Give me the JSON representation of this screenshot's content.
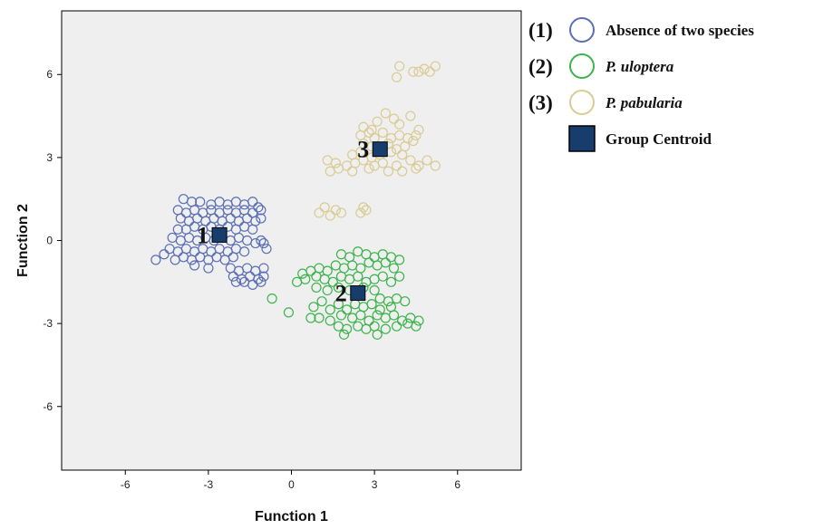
{
  "chart_data": {
    "type": "scatter",
    "xlabel": "Function 1",
    "ylabel": "Function 2",
    "xlim": [
      -8.3,
      8.3
    ],
    "ylim": [
      -8.3,
      8.3
    ],
    "xticks": [
      -6,
      -3,
      0,
      3,
      6
    ],
    "yticks": [
      -6,
      -3,
      0,
      3,
      6
    ],
    "tick_labels": {
      "x": [
        "-6",
        "-3",
        "0",
        "3",
        "6"
      ],
      "y": [
        "-6",
        "-3",
        "0",
        "3",
        "6"
      ]
    },
    "plot_background": "#efefef",
    "legend_position": "top-right",
    "legend": [
      {
        "number": "(1)",
        "label": "Absence of two species",
        "color": "#5b6fb5",
        "marker": "open-circle",
        "italic": false
      },
      {
        "number": "(2)",
        "label": "P. uloptera",
        "color": "#3cb44b",
        "marker": "open-circle",
        "italic": true
      },
      {
        "number": "(3)",
        "label": "P. pabularia",
        "color": "#d9cb94",
        "marker": "open-circle",
        "italic": true
      },
      {
        "number": "",
        "label": "Group Centroid",
        "color": "#173d6d",
        "marker": "filled-square",
        "italic": false
      }
    ],
    "series": [
      {
        "group": "1",
        "color": "#5b6fb5",
        "points": [
          [
            -3.9,
            1.5
          ],
          [
            -3.6,
            1.4
          ],
          [
            -3.3,
            1.4
          ],
          [
            -2.9,
            1.3
          ],
          [
            -2.6,
            1.4
          ],
          [
            -2.3,
            1.3
          ],
          [
            -2.0,
            1.4
          ],
          [
            -1.7,
            1.3
          ],
          [
            -1.4,
            1.4
          ],
          [
            -1.2,
            1.2
          ],
          [
            -4.1,
            1.1
          ],
          [
            -3.8,
            1.0
          ],
          [
            -3.5,
            1.1
          ],
          [
            -3.2,
            1.0
          ],
          [
            -2.9,
            1.1
          ],
          [
            -2.6,
            1.0
          ],
          [
            -2.3,
            1.1
          ],
          [
            -2.0,
            1.0
          ],
          [
            -1.7,
            1.1
          ],
          [
            -1.4,
            1.0
          ],
          [
            -1.1,
            1.1
          ],
          [
            -4.0,
            0.8
          ],
          [
            -3.7,
            0.7
          ],
          [
            -3.4,
            0.8
          ],
          [
            -3.1,
            0.7
          ],
          [
            -2.8,
            0.8
          ],
          [
            -2.5,
            0.7
          ],
          [
            -2.2,
            0.8
          ],
          [
            -1.9,
            0.7
          ],
          [
            -1.6,
            0.8
          ],
          [
            -1.3,
            0.7
          ],
          [
            -1.1,
            0.8
          ],
          [
            -4.1,
            0.4
          ],
          [
            -3.8,
            0.4
          ],
          [
            -3.5,
            0.5
          ],
          [
            -3.2,
            0.4
          ],
          [
            -2.9,
            0.5
          ],
          [
            -2.6,
            0.4
          ],
          [
            -2.3,
            0.5
          ],
          [
            -2.0,
            0.4
          ],
          [
            -1.7,
            0.5
          ],
          [
            -1.4,
            0.4
          ],
          [
            -4.3,
            0.1
          ],
          [
            -4.0,
            0.0
          ],
          [
            -3.7,
            0.1
          ],
          [
            -3.4,
            0.0
          ],
          [
            -3.1,
            0.1
          ],
          [
            -2.8,
            0.0
          ],
          [
            -2.5,
            0.1
          ],
          [
            -2.2,
            0.0
          ],
          [
            -1.9,
            0.1
          ],
          [
            -1.6,
            0.0
          ],
          [
            -1.3,
            -0.1
          ],
          [
            -1.1,
            0.0
          ],
          [
            -4.4,
            -0.3
          ],
          [
            -4.1,
            -0.4
          ],
          [
            -3.8,
            -0.3
          ],
          [
            -3.5,
            -0.4
          ],
          [
            -3.2,
            -0.3
          ],
          [
            -2.9,
            -0.4
          ],
          [
            -2.6,
            -0.3
          ],
          [
            -2.3,
            -0.4
          ],
          [
            -2.0,
            -0.3
          ],
          [
            -1.7,
            -0.4
          ],
          [
            -4.2,
            -0.7
          ],
          [
            -3.9,
            -0.6
          ],
          [
            -3.6,
            -0.7
          ],
          [
            -3.3,
            -0.6
          ],
          [
            -3.0,
            -0.7
          ],
          [
            -2.7,
            -0.6
          ],
          [
            -2.4,
            -0.7
          ],
          [
            -2.1,
            -0.6
          ],
          [
            -4.9,
            -0.7
          ],
          [
            -4.6,
            -0.5
          ],
          [
            -3.5,
            -0.9
          ],
          [
            -3.0,
            -1.0
          ],
          [
            -0.9,
            -0.3
          ],
          [
            -1.0,
            -0.1
          ],
          [
            -2.2,
            -1.0
          ],
          [
            -1.9,
            -1.1
          ],
          [
            -1.6,
            -1.0
          ],
          [
            -1.3,
            -1.1
          ],
          [
            -1.0,
            -1.0
          ],
          [
            -2.1,
            -1.3
          ],
          [
            -1.8,
            -1.4
          ],
          [
            -1.5,
            -1.3
          ],
          [
            -1.2,
            -1.4
          ],
          [
            -1.0,
            -1.3
          ],
          [
            -2.0,
            -1.5
          ],
          [
            -1.7,
            -1.5
          ],
          [
            -1.4,
            -1.6
          ],
          [
            -1.1,
            -1.5
          ]
        ]
      },
      {
        "group": "2",
        "color": "#3cb44b",
        "points": [
          [
            -0.7,
            -2.1
          ],
          [
            -0.1,
            -2.6
          ],
          [
            0.4,
            -1.2
          ],
          [
            0.7,
            -1.1
          ],
          [
            1.0,
            -1.0
          ],
          [
            1.3,
            -1.1
          ],
          [
            1.6,
            -0.9
          ],
          [
            1.9,
            -1.0
          ],
          [
            2.2,
            -0.9
          ],
          [
            2.5,
            -1.0
          ],
          [
            2.8,
            -0.8
          ],
          [
            3.1,
            -0.9
          ],
          [
            3.4,
            -0.8
          ],
          [
            3.7,
            -1.0
          ],
          [
            1.8,
            -0.5
          ],
          [
            2.1,
            -0.6
          ],
          [
            2.4,
            -0.4
          ],
          [
            2.7,
            -0.5
          ],
          [
            3.0,
            -0.6
          ],
          [
            3.3,
            -0.5
          ],
          [
            3.6,
            -0.6
          ],
          [
            3.9,
            -0.7
          ],
          [
            0.2,
            -1.5
          ],
          [
            0.5,
            -1.4
          ],
          [
            0.9,
            -1.3
          ],
          [
            1.2,
            -1.4
          ],
          [
            1.5,
            -1.5
          ],
          [
            1.8,
            -1.3
          ],
          [
            2.1,
            -1.4
          ],
          [
            2.4,
            -1.3
          ],
          [
            2.7,
            -1.5
          ],
          [
            3.0,
            -1.4
          ],
          [
            3.3,
            -1.3
          ],
          [
            3.6,
            -1.5
          ],
          [
            3.9,
            -1.3
          ],
          [
            0.9,
            -1.7
          ],
          [
            1.3,
            -1.8
          ],
          [
            1.7,
            -1.7
          ],
          [
            2.1,
            -1.8
          ],
          [
            2.6,
            -1.7
          ],
          [
            3.0,
            -1.8
          ],
          [
            3.2,
            -2.1
          ],
          [
            3.5,
            -2.2
          ],
          [
            3.8,
            -2.1
          ],
          [
            4.1,
            -2.2
          ],
          [
            0.8,
            -2.4
          ],
          [
            1.1,
            -2.2
          ],
          [
            1.4,
            -2.5
          ],
          [
            1.7,
            -2.3
          ],
          [
            2.0,
            -2.5
          ],
          [
            2.3,
            -2.3
          ],
          [
            2.6,
            -2.4
          ],
          [
            2.9,
            -2.3
          ],
          [
            3.2,
            -2.5
          ],
          [
            3.6,
            -2.4
          ],
          [
            1.0,
            -2.8
          ],
          [
            1.4,
            -2.9
          ],
          [
            1.8,
            -2.7
          ],
          [
            2.2,
            -2.8
          ],
          [
            2.5,
            -2.7
          ],
          [
            2.8,
            -2.9
          ],
          [
            3.1,
            -2.7
          ],
          [
            3.4,
            -2.8
          ],
          [
            3.7,
            -2.7
          ],
          [
            4.0,
            -2.9
          ],
          [
            4.3,
            -2.8
          ],
          [
            4.6,
            -2.9
          ],
          [
            1.7,
            -3.1
          ],
          [
            2.0,
            -3.2
          ],
          [
            2.4,
            -3.1
          ],
          [
            2.7,
            -3.2
          ],
          [
            3.0,
            -3.1
          ],
          [
            3.4,
            -3.2
          ],
          [
            3.8,
            -3.1
          ],
          [
            4.2,
            -3.0
          ],
          [
            4.5,
            -3.1
          ],
          [
            0.7,
            -2.8
          ],
          [
            1.9,
            -3.4
          ],
          [
            3.1,
            -3.4
          ]
        ]
      },
      {
        "group": "3",
        "color": "#d9cb94",
        "points": [
          [
            3.9,
            6.3
          ],
          [
            4.4,
            6.1
          ],
          [
            4.6,
            6.1
          ],
          [
            4.8,
            6.2
          ],
          [
            5.0,
            6.1
          ],
          [
            5.2,
            6.3
          ],
          [
            3.8,
            5.9
          ],
          [
            2.6,
            4.1
          ],
          [
            2.9,
            4.0
          ],
          [
            3.1,
            4.3
          ],
          [
            3.4,
            4.6
          ],
          [
            3.7,
            4.4
          ],
          [
            3.9,
            4.2
          ],
          [
            4.3,
            4.5
          ],
          [
            4.6,
            4.0
          ],
          [
            2.5,
            3.8
          ],
          [
            2.8,
            3.9
          ],
          [
            3.0,
            3.7
          ],
          [
            3.3,
            3.9
          ],
          [
            3.6,
            3.7
          ],
          [
            3.9,
            3.8
          ],
          [
            4.2,
            3.7
          ],
          [
            4.5,
            3.8
          ],
          [
            2.6,
            3.5
          ],
          [
            2.9,
            3.4
          ],
          [
            3.5,
            3.5
          ],
          [
            3.8,
            3.3
          ],
          [
            4.1,
            3.4
          ],
          [
            4.4,
            3.6
          ],
          [
            2.2,
            3.1
          ],
          [
            2.5,
            3.2
          ],
          [
            2.9,
            3.0
          ],
          [
            3.2,
            3.1
          ],
          [
            3.6,
            3.2
          ],
          [
            4.0,
            3.1
          ],
          [
            1.3,
            2.9
          ],
          [
            1.6,
            2.8
          ],
          [
            2.0,
            2.7
          ],
          [
            2.3,
            2.8
          ],
          [
            2.6,
            2.9
          ],
          [
            3.0,
            2.7
          ],
          [
            3.3,
            2.8
          ],
          [
            3.8,
            2.7
          ],
          [
            4.3,
            2.9
          ],
          [
            4.6,
            2.7
          ],
          [
            4.9,
            2.9
          ],
          [
            5.2,
            2.7
          ],
          [
            1.4,
            2.5
          ],
          [
            1.7,
            2.6
          ],
          [
            2.2,
            2.5
          ],
          [
            2.8,
            2.6
          ],
          [
            3.5,
            2.5
          ],
          [
            4.0,
            2.5
          ],
          [
            4.5,
            2.6
          ],
          [
            1.0,
            1.0
          ],
          [
            1.2,
            1.2
          ],
          [
            1.4,
            0.9
          ],
          [
            1.6,
            1.1
          ],
          [
            1.8,
            1.0
          ],
          [
            2.5,
            1.0
          ],
          [
            2.6,
            1.2
          ],
          [
            2.7,
            1.1
          ]
        ]
      }
    ],
    "centroids": [
      {
        "label": "1",
        "x": -2.6,
        "y": 0.2
      },
      {
        "label": "2",
        "x": 2.4,
        "y": -1.9
      },
      {
        "label": "3",
        "x": 3.2,
        "y": 3.3
      }
    ]
  }
}
